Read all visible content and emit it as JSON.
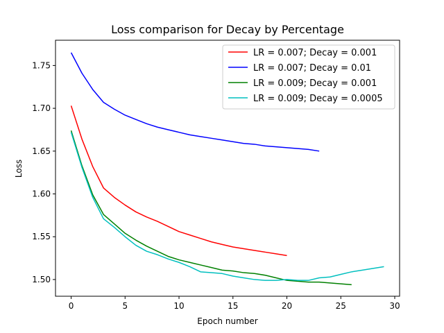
{
  "chart_data": {
    "type": "line",
    "title": "Loss comparison for Decay by Percentage",
    "xlabel": "Epoch number",
    "ylabel": "Loss",
    "xlim": [
      -1.45,
      30.45
    ],
    "ylim": [
      1.4805,
      1.7795
    ],
    "xticks": [
      0,
      5,
      10,
      15,
      20,
      25,
      30
    ],
    "yticks": [
      1.5,
      1.55,
      1.6,
      1.65,
      1.7,
      1.75
    ],
    "ytick_labels": [
      "1.50",
      "1.55",
      "1.60",
      "1.65",
      "1.70",
      "1.75"
    ],
    "grid": false,
    "legend_position": "top-right",
    "series": [
      {
        "name": "LR = 0.007; Decay = 0.001",
        "color": "#ff0000",
        "x": [
          0,
          1,
          2,
          3,
          4,
          5,
          6,
          7,
          8,
          9,
          10,
          11,
          12,
          13,
          14,
          15,
          16,
          17,
          18,
          19,
          20
        ],
        "y": [
          1.703,
          1.664,
          1.632,
          1.607,
          1.596,
          1.587,
          1.579,
          1.573,
          1.568,
          1.562,
          1.556,
          1.552,
          1.548,
          1.544,
          1.541,
          1.538,
          1.536,
          1.534,
          1.532,
          1.53,
          1.528
        ]
      },
      {
        "name": "LR = 0.007; Decay = 0.01",
        "color": "#0000ff",
        "x": [
          0,
          1,
          2,
          3,
          4,
          5,
          6,
          7,
          8,
          9,
          10,
          11,
          12,
          13,
          14,
          15,
          16,
          17,
          18,
          19,
          20,
          21,
          22,
          23
        ],
        "y": [
          1.765,
          1.741,
          1.722,
          1.707,
          1.699,
          1.692,
          1.687,
          1.682,
          1.678,
          1.675,
          1.672,
          1.669,
          1.667,
          1.665,
          1.663,
          1.661,
          1.659,
          1.658,
          1.656,
          1.655,
          1.654,
          1.653,
          1.652,
          1.65
        ]
      },
      {
        "name": "LR = 0.009; Decay = 0.001",
        "color": "#008000",
        "x": [
          0,
          1,
          2,
          3,
          4,
          5,
          6,
          7,
          8,
          9,
          10,
          11,
          12,
          13,
          14,
          15,
          16,
          17,
          18,
          19,
          20,
          21,
          22,
          23,
          24,
          25,
          26
        ],
        "y": [
          1.674,
          1.633,
          1.599,
          1.576,
          1.565,
          1.554,
          1.546,
          1.539,
          1.533,
          1.527,
          1.523,
          1.52,
          1.517,
          1.514,
          1.511,
          1.51,
          1.508,
          1.507,
          1.505,
          1.502,
          1.499,
          1.498,
          1.497,
          1.497,
          1.496,
          1.495,
          1.494
        ]
      },
      {
        "name": "LR = 0.009; Decay = 0.0005",
        "color": "#00bfbf",
        "x": [
          0,
          1,
          2,
          3,
          4,
          5,
          6,
          7,
          8,
          9,
          10,
          11,
          12,
          13,
          14,
          15,
          16,
          17,
          18,
          19,
          20,
          21,
          22,
          23,
          24,
          25,
          26,
          27,
          28,
          29
        ],
        "y": [
          1.672,
          1.631,
          1.596,
          1.571,
          1.561,
          1.55,
          1.54,
          1.533,
          1.529,
          1.524,
          1.52,
          1.515,
          1.509,
          1.508,
          1.507,
          1.504,
          1.502,
          1.5,
          1.499,
          1.499,
          1.5,
          1.499,
          1.499,
          1.502,
          1.503,
          1.506,
          1.509,
          1.511,
          1.513,
          1.515
        ]
      }
    ]
  }
}
